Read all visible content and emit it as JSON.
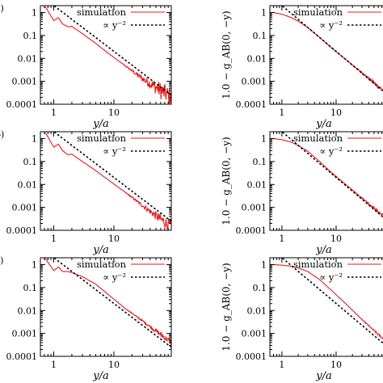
{
  "figure": {
    "left_column_ylabel": "",
    "right_column_ylabel": "1.0 − g_AB(0, −y)",
    "xlabel": "y/a",
    "panel_tags": [
      "a)",
      "b)",
      "c)"
    ]
  },
  "legend": {
    "simulation": "simulation",
    "fit": "∝ y⁻²"
  },
  "colors": {
    "simulation": "#e31a1c",
    "fit": "#000000"
  },
  "chart_data": [
    {
      "type": "line",
      "panel": "a-left",
      "xscale": "log",
      "yscale": "log",
      "xlim": [
        0.6,
        90
      ],
      "ylim": [
        0.0001,
        2
      ],
      "xticks": [
        "1",
        "10"
      ],
      "yticks": [
        "1",
        "0.1",
        "0.01",
        "0.001",
        "0.0001"
      ],
      "xlabel": "y/a",
      "ylabel": "",
      "series": [
        {
          "name": "simulation",
          "style": "oscillating",
          "x": [
            0.7,
            0.75,
            0.85,
            1.0,
            1.2,
            1.4,
            1.7,
            2.0,
            3,
            5,
            8,
            15,
            30,
            60,
            90
          ],
          "y": [
            1.8,
            1.6,
            0.9,
            0.45,
            0.6,
            0.32,
            0.24,
            0.25,
            0.12,
            0.045,
            0.017,
            0.005,
            0.0013,
            0.0004,
            0.0002
          ],
          "noise": 0.8
        },
        {
          "name": "∝ y⁻²",
          "x": [
            0.9,
            90
          ],
          "y": [
            2.5,
            0.00025
          ]
        }
      ]
    },
    {
      "type": "line",
      "panel": "a-right",
      "xscale": "log",
      "yscale": "log",
      "xlim": [
        0.6,
        90
      ],
      "ylim": [
        0.0001,
        2
      ],
      "xticks": [
        "1",
        "10"
      ],
      "yticks": [
        "1",
        "0.1",
        "0.01",
        "0.001",
        "0.0001"
      ],
      "xlabel": "y/a",
      "ylabel": "1.0 − g_AB(0, −y)",
      "series": [
        {
          "name": "simulation",
          "style": "smooth",
          "x": [
            0.7,
            1.0,
            1.5,
            2,
            3,
            5,
            8,
            15,
            30,
            60,
            90
          ],
          "y": [
            1.0,
            0.85,
            0.6,
            0.42,
            0.22,
            0.08,
            0.03,
            0.009,
            0.0024,
            0.0006,
            0.00028
          ],
          "noise": 0.2
        },
        {
          "name": "∝ y⁻²",
          "x": [
            0.9,
            90
          ],
          "y": [
            2.5,
            0.00025
          ]
        }
      ]
    },
    {
      "type": "line",
      "panel": "b-left",
      "xscale": "log",
      "yscale": "log",
      "xlim": [
        0.6,
        90
      ],
      "ylim": [
        0.0001,
        2
      ],
      "xticks": [
        "1",
        "10"
      ],
      "yticks": [
        "1",
        "0.1",
        "0.01",
        "0.001",
        "0.0001"
      ],
      "xlabel": "y/a",
      "ylabel": "",
      "series": [
        {
          "name": "simulation",
          "style": "oscillating",
          "x": [
            0.7,
            0.75,
            0.85,
            1.0,
            1.2,
            1.4,
            1.7,
            2.0,
            3,
            5,
            8,
            15,
            30,
            60,
            90
          ],
          "y": [
            1.8,
            1.6,
            0.9,
            0.42,
            0.58,
            0.3,
            0.2,
            0.21,
            0.1,
            0.04,
            0.016,
            0.0048,
            0.0012,
            0.0003,
            0.00015
          ],
          "noise": 0.5
        },
        {
          "name": "∝ y⁻²",
          "x": [
            0.9,
            90
          ],
          "y": [
            2.5,
            0.00025
          ]
        }
      ]
    },
    {
      "type": "line",
      "panel": "b-right",
      "xscale": "log",
      "yscale": "log",
      "xlim": [
        0.6,
        90
      ],
      "ylim": [
        0.0001,
        2
      ],
      "xticks": [
        "1",
        "10"
      ],
      "yticks": [
        "1",
        "0.1",
        "0.01",
        "0.001",
        "0.0001"
      ],
      "xlabel": "y/a",
      "ylabel": "1.0 − g_AB(0, −y)",
      "series": [
        {
          "name": "simulation",
          "style": "smooth",
          "x": [
            0.7,
            1.0,
            1.5,
            2,
            3,
            5,
            8,
            15,
            30,
            60,
            90
          ],
          "y": [
            1.0,
            0.9,
            0.7,
            0.5,
            0.28,
            0.1,
            0.035,
            0.01,
            0.0026,
            0.00065,
            0.0003
          ],
          "noise": 0.15
        },
        {
          "name": "∝ y⁻²",
          "x": [
            0.9,
            90
          ],
          "y": [
            2.5,
            0.00025
          ]
        }
      ]
    },
    {
      "type": "line",
      "panel": "c-left",
      "xscale": "log",
      "yscale": "log",
      "xlim": [
        0.6,
        90
      ],
      "ylim": [
        0.0001,
        2
      ],
      "xticks": [
        "1",
        "10"
      ],
      "yticks": [
        "1",
        "0.1",
        "0.01",
        "0.001",
        "0.0001"
      ],
      "xlabel": "y/a",
      "ylabel": "",
      "series": [
        {
          "name": "simulation",
          "style": "oscillating",
          "x": [
            0.7,
            0.75,
            0.85,
            1.0,
            1.2,
            1.4,
            1.7,
            2.0,
            3,
            5,
            8,
            15,
            30,
            60,
            90
          ],
          "y": [
            1.8,
            1.7,
            1.0,
            0.55,
            0.8,
            0.5,
            0.5,
            0.45,
            0.3,
            0.14,
            0.05,
            0.013,
            0.0035,
            0.0009,
            0.0004
          ],
          "noise": 0.25
        },
        {
          "name": "∝ y⁻²",
          "x": [
            0.9,
            90
          ],
          "y": [
            2.5,
            0.00025
          ]
        }
      ]
    },
    {
      "type": "line",
      "panel": "c-right",
      "xscale": "log",
      "yscale": "log",
      "xlim": [
        0.6,
        90
      ],
      "ylim": [
        0.0001,
        2
      ],
      "xticks": [
        "1",
        "10"
      ],
      "yticks": [
        "1",
        "0.1",
        "0.01",
        "0.001",
        "0.0001"
      ],
      "xlabel": "y/a",
      "ylabel": "1.0 − g_AB(0, −y)",
      "series": [
        {
          "name": "simulation",
          "style": "smooth",
          "x": [
            0.7,
            1.0,
            1.5,
            2,
            3,
            5,
            8,
            15,
            30,
            60,
            90
          ],
          "y": [
            1.0,
            0.95,
            0.85,
            0.72,
            0.5,
            0.22,
            0.08,
            0.02,
            0.004,
            0.0009,
            0.0004
          ],
          "noise": 0.1
        },
        {
          "name": "∝ y⁻²",
          "x": [
            0.9,
            90
          ],
          "y": [
            2.5,
            0.00025
          ]
        }
      ]
    }
  ]
}
